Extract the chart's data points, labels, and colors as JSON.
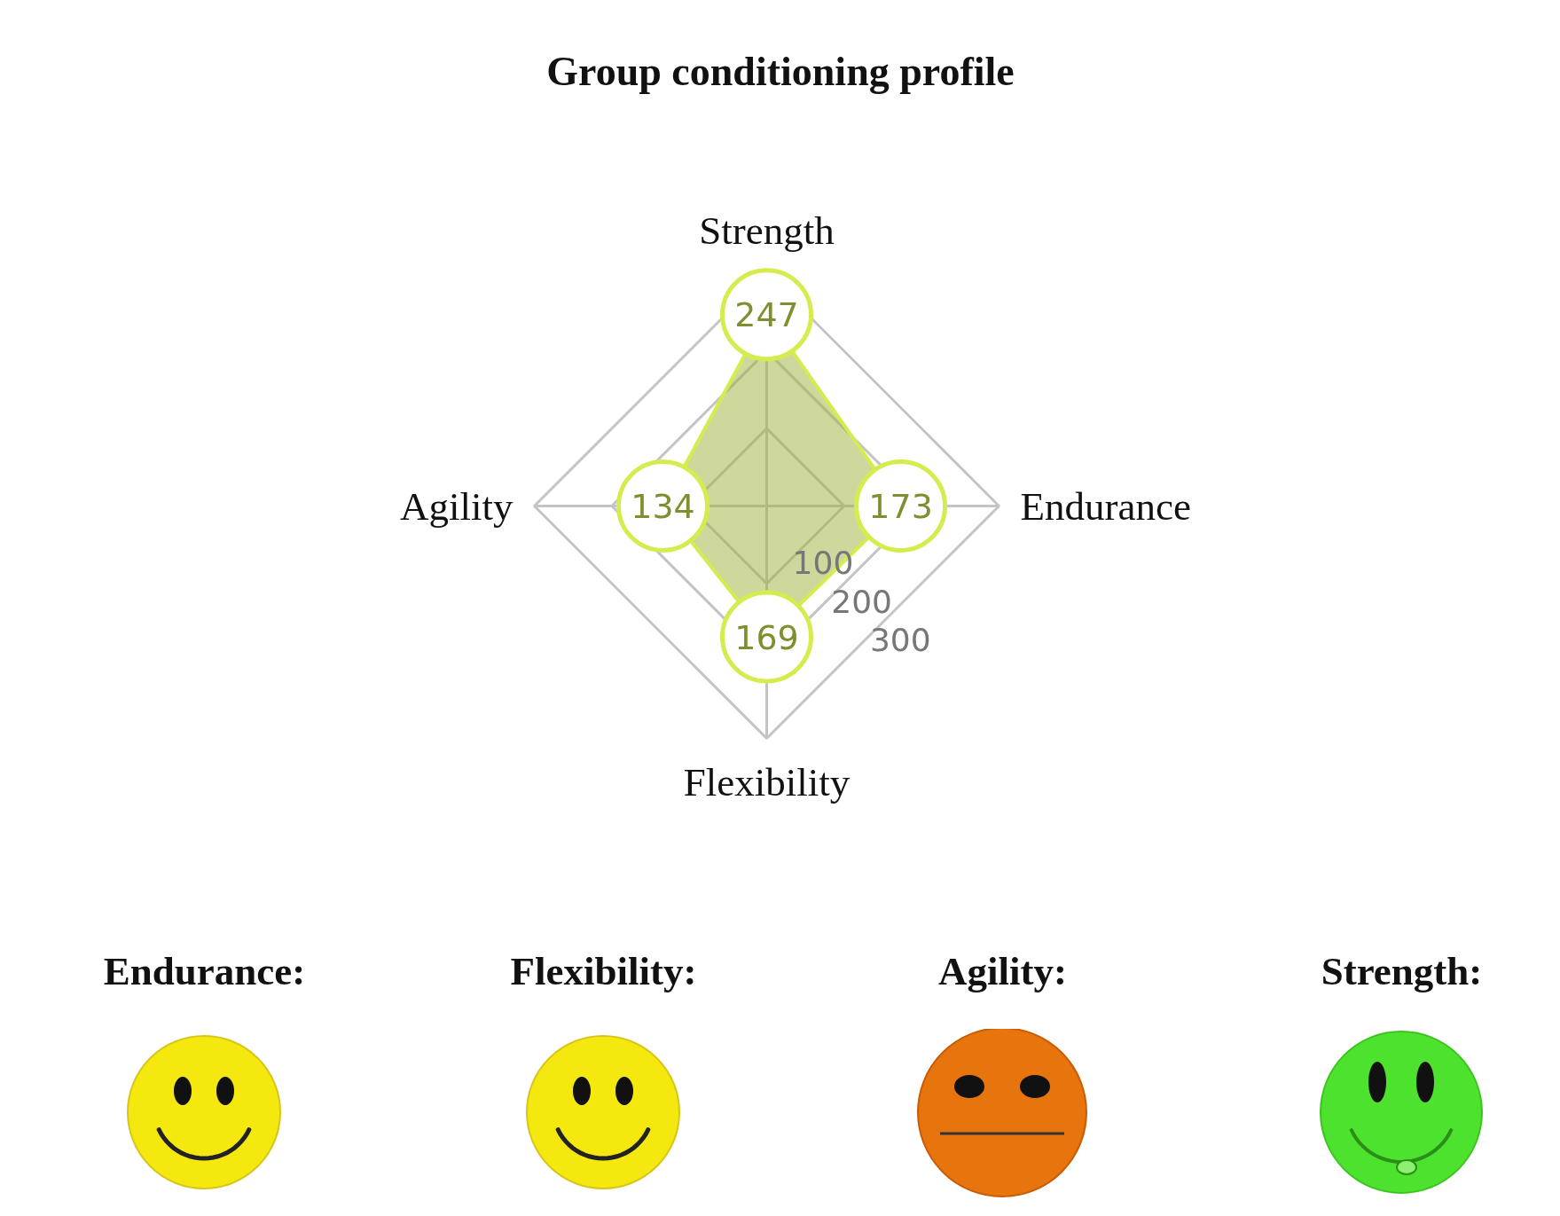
{
  "chart_data": {
    "type": "radar",
    "title": "Group conditioning profile",
    "categories": [
      "Strength",
      "Endurance",
      "Flexibility",
      "Agility"
    ],
    "series": [
      {
        "color": "#d6ec4e",
        "values": [
          247,
          173,
          169,
          134
        ]
      }
    ],
    "ylim": [
      0,
      300
    ],
    "yticks": [
      100,
      200,
      300
    ],
    "grid": true,
    "marker": "circle",
    "data_labels": true,
    "annotations": [
      "Endurance:",
      "Flexibility:",
      "Agility:",
      "Strength:"
    ]
  }
}
